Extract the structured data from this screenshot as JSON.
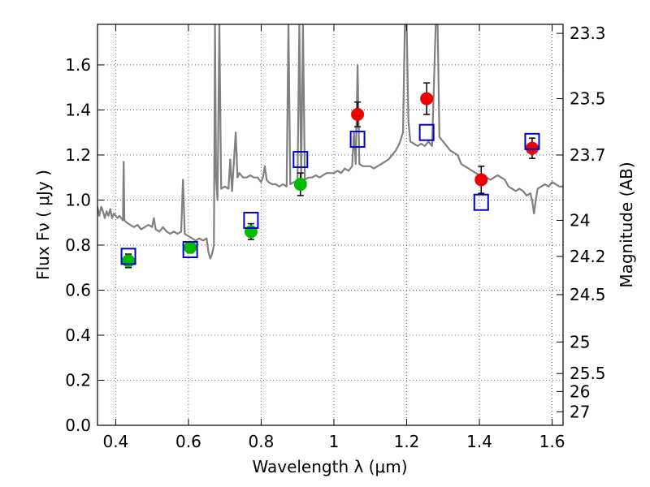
{
  "chart_data": {
    "type": "scatter",
    "xlabel": "Wavelength  λ (μm)",
    "ylabel": "Flux  Fν  ( μJy )",
    "ylabel_right": "Magnitude (AB)",
    "xlim": [
      0.35,
      1.63
    ],
    "ylim": [
      0.0,
      1.78
    ],
    "grid": true,
    "x_ticks": [
      {
        "value": 0.4,
        "label": "0.4"
      },
      {
        "value": 0.6,
        "label": "0.6"
      },
      {
        "value": 0.8,
        "label": "0.8"
      },
      {
        "value": 1.0,
        "label": "1"
      },
      {
        "value": 1.2,
        "label": "1.2"
      },
      {
        "value": 1.4,
        "label": "1.4"
      },
      {
        "value": 1.6,
        "label": "1.6"
      }
    ],
    "y_ticks": [
      {
        "value": 0.0,
        "label": "0.0"
      },
      {
        "value": 0.2,
        "label": "0.2"
      },
      {
        "value": 0.4,
        "label": "0.4"
      },
      {
        "value": 0.6,
        "label": "0.6"
      },
      {
        "value": 0.8,
        "label": "0.8"
      },
      {
        "value": 1.0,
        "label": "1.0"
      },
      {
        "value": 1.2,
        "label": "1.2"
      },
      {
        "value": 1.4,
        "label": "1.4"
      },
      {
        "value": 1.6,
        "label": "1.6"
      }
    ],
    "right_ticks": [
      {
        "flux": 1.74,
        "label": "23.3"
      },
      {
        "flux": 1.45,
        "label": "23.5"
      },
      {
        "flux": 1.2,
        "label": "23.7"
      },
      {
        "flux": 0.91,
        "label": "24"
      },
      {
        "flux": 0.75,
        "label": "24.2"
      },
      {
        "flux": 0.58,
        "label": "24.5"
      },
      {
        "flux": 0.37,
        "label": "25"
      },
      {
        "flux": 0.23,
        "label": "25.5"
      },
      {
        "flux": 0.15,
        "label": "26"
      },
      {
        "flux": 0.06,
        "label": "27"
      }
    ],
    "series": [
      {
        "kind": "line",
        "color": "#808080",
        "points": [
          [
            0.35,
            0.97
          ],
          [
            0.355,
            0.93
          ],
          [
            0.36,
            0.97
          ],
          [
            0.365,
            0.95
          ],
          [
            0.37,
            0.92
          ],
          [
            0.375,
            0.95
          ],
          [
            0.38,
            0.93
          ],
          [
            0.385,
            0.96
          ],
          [
            0.39,
            0.92
          ],
          [
            0.395,
            0.94
          ],
          [
            0.4,
            0.93
          ],
          [
            0.405,
            0.92
          ],
          [
            0.41,
            0.93
          ],
          [
            0.415,
            0.92
          ],
          [
            0.42,
            0.91
          ],
          [
            0.422,
            1.17
          ],
          [
            0.424,
            0.91
          ],
          [
            0.43,
            0.9
          ],
          [
            0.44,
            0.89
          ],
          [
            0.45,
            0.88
          ],
          [
            0.46,
            0.89
          ],
          [
            0.47,
            0.87
          ],
          [
            0.48,
            0.88
          ],
          [
            0.49,
            0.89
          ],
          [
            0.5,
            0.88
          ],
          [
            0.505,
            0.92
          ],
          [
            0.51,
            0.87
          ],
          [
            0.52,
            0.86
          ],
          [
            0.53,
            0.88
          ],
          [
            0.54,
            0.86
          ],
          [
            0.55,
            0.85
          ],
          [
            0.56,
            0.86
          ],
          [
            0.57,
            0.85
          ],
          [
            0.58,
            0.86
          ],
          [
            0.585,
            1.09
          ],
          [
            0.59,
            0.85
          ],
          [
            0.6,
            0.84
          ],
          [
            0.61,
            0.83
          ],
          [
            0.62,
            0.82
          ],
          [
            0.63,
            0.83
          ],
          [
            0.64,
            0.82
          ],
          [
            0.65,
            0.83
          ],
          [
            0.655,
            0.77
          ],
          [
            0.66,
            0.74
          ],
          [
            0.665,
            0.76
          ],
          [
            0.67,
            0.8
          ],
          [
            0.673,
            1.78
          ],
          [
            0.676,
            1.1
          ],
          [
            0.68,
            1.0
          ],
          [
            0.685,
            1.78
          ],
          [
            0.69,
            1.05
          ],
          [
            0.7,
            1.06
          ],
          [
            0.71,
            1.05
          ],
          [
            0.715,
            1.18
          ],
          [
            0.72,
            1.04
          ],
          [
            0.73,
            1.3
          ],
          [
            0.735,
            1.1
          ],
          [
            0.74,
            1.12
          ],
          [
            0.75,
            1.1
          ],
          [
            0.76,
            1.1
          ],
          [
            0.77,
            1.11
          ],
          [
            0.78,
            1.1
          ],
          [
            0.79,
            1.1
          ],
          [
            0.8,
            1.08
          ],
          [
            0.805,
            1.1
          ],
          [
            0.81,
            1.15
          ],
          [
            0.815,
            1.09
          ],
          [
            0.82,
            1.08
          ],
          [
            0.83,
            1.07
          ],
          [
            0.84,
            1.07
          ],
          [
            0.85,
            1.06
          ],
          [
            0.86,
            1.07
          ],
          [
            0.87,
            1.06
          ],
          [
            0.875,
            1.78
          ],
          [
            0.88,
            1.07
          ],
          [
            0.89,
            1.08
          ],
          [
            0.9,
            1.08
          ],
          [
            0.905,
            1.78
          ],
          [
            0.91,
            1.1
          ],
          [
            0.915,
            1.78
          ],
          [
            0.92,
            1.09
          ],
          [
            0.93,
            1.1
          ],
          [
            0.94,
            1.1
          ],
          [
            0.95,
            1.11
          ],
          [
            0.96,
            1.1
          ],
          [
            0.97,
            1.11
          ],
          [
            0.98,
            1.12
          ],
          [
            0.99,
            1.12
          ],
          [
            1.0,
            1.12
          ],
          [
            1.01,
            1.13
          ],
          [
            1.02,
            1.12
          ],
          [
            1.03,
            1.14
          ],
          [
            1.04,
            1.13
          ],
          [
            1.05,
            1.15
          ],
          [
            1.055,
            1.3
          ],
          [
            1.06,
            1.16
          ],
          [
            1.065,
            1.6
          ],
          [
            1.07,
            1.16
          ],
          [
            1.08,
            1.15
          ],
          [
            1.09,
            1.15
          ],
          [
            1.1,
            1.15
          ],
          [
            1.11,
            1.14
          ],
          [
            1.12,
            1.15
          ],
          [
            1.13,
            1.16
          ],
          [
            1.14,
            1.17
          ],
          [
            1.15,
            1.18
          ],
          [
            1.16,
            1.2
          ],
          [
            1.17,
            1.22
          ],
          [
            1.18,
            1.25
          ],
          [
            1.19,
            1.3
          ],
          [
            1.195,
            1.78
          ],
          [
            1.2,
            1.78
          ],
          [
            1.205,
            1.35
          ],
          [
            1.21,
            1.26
          ],
          [
            1.22,
            1.25
          ],
          [
            1.23,
            1.24
          ],
          [
            1.24,
            1.25
          ],
          [
            1.25,
            1.24
          ],
          [
            1.26,
            1.26
          ],
          [
            1.27,
            1.24
          ],
          [
            1.28,
            1.78
          ],
          [
            1.285,
            1.78
          ],
          [
            1.29,
            1.28
          ],
          [
            1.3,
            1.26
          ],
          [
            1.31,
            1.24
          ],
          [
            1.32,
            1.22
          ],
          [
            1.33,
            1.21
          ],
          [
            1.34,
            1.2
          ],
          [
            1.35,
            1.16
          ],
          [
            1.36,
            1.15
          ],
          [
            1.37,
            1.14
          ],
          [
            1.38,
            1.13
          ],
          [
            1.39,
            1.12
          ],
          [
            1.4,
            1.11
          ],
          [
            1.41,
            1.1
          ],
          [
            1.42,
            1.1
          ],
          [
            1.43,
            1.09
          ],
          [
            1.44,
            1.1
          ],
          [
            1.45,
            1.11
          ],
          [
            1.46,
            1.1
          ],
          [
            1.47,
            1.09
          ],
          [
            1.48,
            1.06
          ],
          [
            1.49,
            1.05
          ],
          [
            1.5,
            1.04
          ],
          [
            1.51,
            1.05
          ],
          [
            1.52,
            1.04
          ],
          [
            1.53,
            1.02
          ],
          [
            1.54,
            1.03
          ],
          [
            1.545,
            1.0
          ],
          [
            1.55,
            0.94
          ],
          [
            1.555,
            1.0
          ],
          [
            1.56,
            1.05
          ],
          [
            1.57,
            1.06
          ],
          [
            1.58,
            1.07
          ],
          [
            1.59,
            1.06
          ],
          [
            1.6,
            1.08
          ],
          [
            1.61,
            1.07
          ],
          [
            1.62,
            1.06
          ],
          [
            1.63,
            1.06
          ]
        ]
      },
      {
        "kind": "points",
        "marker": "circle",
        "color": "#00bb00",
        "points": [
          {
            "x": 0.435,
            "y": 0.73,
            "err": 0.03
          },
          {
            "x": 0.605,
            "y": 0.79,
            "err": 0.025
          },
          {
            "x": 0.772,
            "y": 0.86,
            "err": 0.035
          },
          {
            "x": 0.908,
            "y": 1.07,
            "err": 0.05
          }
        ]
      },
      {
        "kind": "points",
        "marker": "circle",
        "color": "#ee0000",
        "points": [
          {
            "x": 1.065,
            "y": 1.38,
            "err": 0.055
          },
          {
            "x": 1.255,
            "y": 1.45,
            "err": 0.07
          },
          {
            "x": 1.405,
            "y": 1.09,
            "err": 0.06
          },
          {
            "x": 1.545,
            "y": 1.23,
            "err": 0.045
          }
        ]
      },
      {
        "kind": "points",
        "marker": "open-square",
        "color": "#0000cc",
        "points": [
          {
            "x": 0.435,
            "y": 0.75
          },
          {
            "x": 0.605,
            "y": 0.78
          },
          {
            "x": 0.772,
            "y": 0.91
          },
          {
            "x": 0.908,
            "y": 1.18
          },
          {
            "x": 1.065,
            "y": 1.27
          },
          {
            "x": 1.255,
            "y": 1.3
          },
          {
            "x": 1.405,
            "y": 0.99
          },
          {
            "x": 1.545,
            "y": 1.26
          }
        ]
      }
    ]
  }
}
